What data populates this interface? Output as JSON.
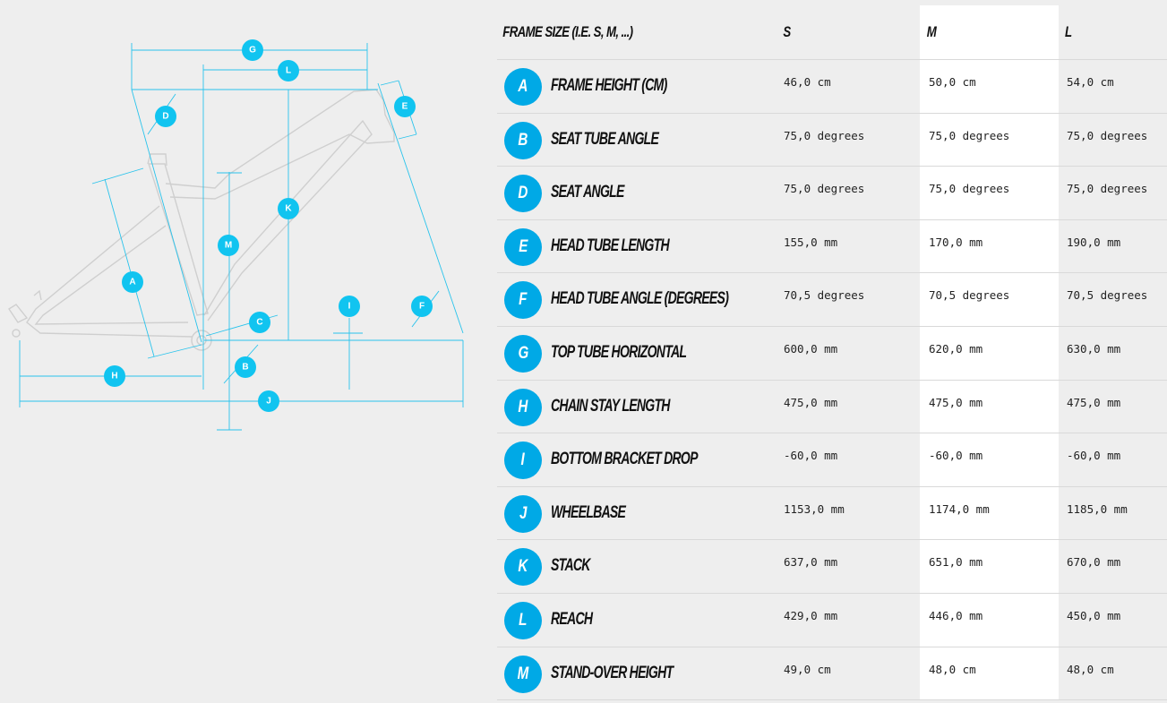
{
  "colors": {
    "accent": "#00a9e6",
    "dimension_line": "#29c3ec",
    "background": "#eeeeee",
    "highlight_column": "#ffffff"
  },
  "diagram": {
    "markers": [
      "G",
      "L",
      "D",
      "E",
      "K",
      "M",
      "A",
      "I",
      "F",
      "C",
      "B",
      "H",
      "J"
    ]
  },
  "table": {
    "header": {
      "label": "FRAME SIZE (I.E. S, M, ...)",
      "sizes": [
        "S",
        "M",
        "L"
      ]
    },
    "rows": [
      {
        "badge": "A",
        "label": "FRAME HEIGHT (CM)",
        "values": [
          "46,0 cm",
          "50,0 cm",
          "54,0 cm"
        ]
      },
      {
        "badge": "B",
        "label": "SEAT TUBE ANGLE",
        "values": [
          "75,0 degrees",
          "75,0 degrees",
          "75,0 degrees"
        ]
      },
      {
        "badge": "D",
        "label": "SEAT ANGLE",
        "values": [
          "75,0 degrees",
          "75,0 degrees",
          "75,0 degrees"
        ]
      },
      {
        "badge": "E",
        "label": "HEAD TUBE LENGTH",
        "values": [
          "155,0 mm",
          "170,0 mm",
          "190,0 mm"
        ]
      },
      {
        "badge": "F",
        "label": "HEAD TUBE ANGLE (DEGREES)",
        "values": [
          "70,5 degrees",
          "70,5 degrees",
          "70,5 degrees"
        ]
      },
      {
        "badge": "G",
        "label": "TOP TUBE HORIZONTAL",
        "values": [
          "600,0 mm",
          "620,0 mm",
          "630,0 mm"
        ]
      },
      {
        "badge": "H",
        "label": "CHAIN STAY LENGTH",
        "values": [
          "475,0 mm",
          "475,0 mm",
          "475,0 mm"
        ]
      },
      {
        "badge": "I",
        "label": "BOTTOM BRACKET DROP",
        "values": [
          "-60,0 mm",
          "-60,0 mm",
          "-60,0 mm"
        ]
      },
      {
        "badge": "J",
        "label": "WHEELBASE",
        "values": [
          "1153,0 mm",
          "1174,0 mm",
          "1185,0 mm"
        ]
      },
      {
        "badge": "K",
        "label": "STACK",
        "values": [
          "637,0 mm",
          "651,0 mm",
          "670,0 mm"
        ]
      },
      {
        "badge": "L",
        "label": "REACH",
        "values": [
          "429,0 mm",
          "446,0 mm",
          "450,0 mm"
        ]
      },
      {
        "badge": "M",
        "label": "STAND-OVER HEIGHT",
        "values": [
          "49,0 cm",
          "48,0 cm",
          "48,0 cm"
        ]
      }
    ]
  }
}
